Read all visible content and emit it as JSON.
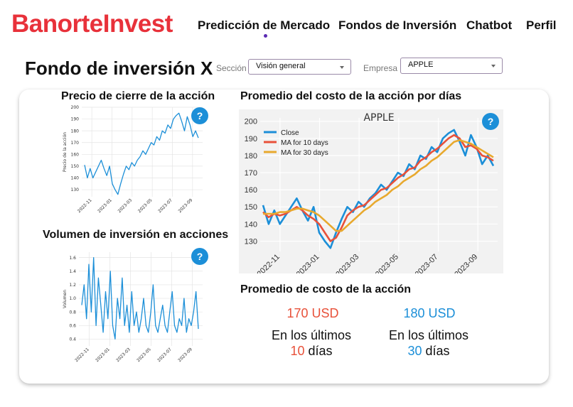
{
  "header": {
    "brand": "BanorteInvest",
    "nav": [
      {
        "label": "Predicción de Mercado",
        "active": true
      },
      {
        "label": "Fondos de Inversión",
        "active": false
      },
      {
        "label": "Chatbot",
        "active": false
      },
      {
        "label": "Perfil",
        "active": false
      }
    ]
  },
  "page": {
    "title": "Fondo de inversión X",
    "section_label": "Sección",
    "section_value": "Visión general",
    "company_label": "Empresa",
    "company_value": "APPLE"
  },
  "panels": {
    "price_title": "Precio de cierre de la acción",
    "volume_title": "Volumen de inversión en acciones",
    "ma_title": "Promedio del costo de la acción por días",
    "avg_title": "Promedio de costo de la acción",
    "help_label": "?"
  },
  "averages": [
    {
      "value": "170 USD",
      "line1": "En los últimos",
      "days": "10",
      "unit": "días",
      "color": "#e8513a"
    },
    {
      "value": "180 USD",
      "line1": "En los últimos",
      "days": "30",
      "unit": "días",
      "color": "#1c8fd8"
    }
  ],
  "colors": {
    "brand": "#e8313a",
    "accent": "#1c8fd8",
    "ten_day": "#e8513a"
  },
  "chart_data": [
    {
      "id": "price",
      "type": "line",
      "title": "",
      "xlabel": "",
      "ylabel": "Precio de la acción",
      "ylim": [
        124,
        200
      ],
      "yticks": [
        130,
        140,
        150,
        160,
        170,
        180,
        190,
        200
      ],
      "xticks": [
        "2022-11",
        "2023-01",
        "2023-03",
        "2023-05",
        "2023-07",
        "2023-09"
      ],
      "series": [
        {
          "name": "Close",
          "values": [
            151,
            140,
            148,
            140,
            145,
            150,
            155,
            148,
            142,
            150,
            135,
            130,
            126,
            135,
            143,
            150,
            147,
            153,
            150,
            155,
            158,
            163,
            160,
            165,
            170,
            168,
            175,
            172,
            180,
            178,
            185,
            182,
            190,
            193,
            195,
            188,
            180,
            192,
            185,
            175,
            180,
            174
          ]
        }
      ]
    },
    {
      "id": "volume",
      "type": "line",
      "title": "",
      "xlabel": "",
      "ylabel": "Volumen",
      "ylim": [
        0.3,
        1.68
      ],
      "yticks": [
        0.4,
        0.6,
        0.8,
        1.0,
        1.2,
        1.4,
        1.6
      ],
      "xticks": [
        "2022-11",
        "2023-01",
        "2023-03",
        "2023-05",
        "2023-07",
        "2023-09"
      ],
      "series": [
        {
          "name": "Volume",
          "values": [
            0.9,
            1.2,
            0.7,
            1.5,
            0.8,
            1.6,
            0.6,
            1.3,
            0.9,
            0.5,
            1.1,
            0.7,
            1.4,
            0.6,
            0.4,
            1.0,
            0.7,
            1.3,
            0.6,
            0.9,
            0.5,
            1.1,
            0.6,
            0.8,
            0.5,
            0.7,
            1.0,
            0.6,
            0.5,
            0.8,
            1.2,
            0.6,
            0.5,
            0.7,
            0.9,
            0.6,
            0.5,
            0.8,
            1.1,
            0.6,
            0.5,
            0.7,
            0.6,
            1.0,
            0.5,
            0.7,
            0.6,
            0.8,
            1.1,
            0.55
          ]
        }
      ]
    },
    {
      "id": "ma",
      "type": "line",
      "title": "APPLE",
      "xlabel": "",
      "ylabel": "",
      "ylim": [
        124,
        202
      ],
      "yticks": [
        130,
        140,
        150,
        160,
        170,
        180,
        190,
        200
      ],
      "xticks": [
        "2022-11",
        "2023-01",
        "2023-03",
        "2023-05",
        "2023-07",
        "2023-09"
      ],
      "legend": "top-left",
      "series": [
        {
          "name": "Close",
          "color": "#1c8fd8",
          "values": [
            151,
            140,
            148,
            140,
            145,
            150,
            155,
            148,
            142,
            150,
            135,
            130,
            126,
            135,
            143,
            150,
            147,
            153,
            150,
            155,
            158,
            163,
            160,
            165,
            170,
            168,
            175,
            172,
            180,
            178,
            185,
            182,
            190,
            193,
            195,
            188,
            180,
            192,
            185,
            175,
            180,
            174
          ]
        },
        {
          "name": "MA for 10 days",
          "color": "#e8513a",
          "values": [
            147,
            144,
            146,
            145,
            146,
            148,
            150,
            148,
            145,
            143,
            140,
            135,
            130,
            132,
            138,
            145,
            148,
            150,
            151,
            154,
            157,
            160,
            161,
            164,
            167,
            169,
            172,
            173,
            177,
            179,
            182,
            184,
            187,
            190,
            192,
            190,
            185,
            186,
            184,
            180,
            179,
            177
          ]
        },
        {
          "name": "MA for 30 days",
          "color": "#e8a92e",
          "values": [
            146,
            146,
            146,
            147,
            147,
            148,
            149,
            149,
            148,
            147,
            145,
            142,
            139,
            136,
            136,
            139,
            142,
            145,
            148,
            150,
            153,
            155,
            157,
            160,
            162,
            165,
            167,
            169,
            172,
            174,
            177,
            179,
            182,
            185,
            188,
            189,
            188,
            187,
            185,
            183,
            181,
            179
          ]
        }
      ]
    }
  ]
}
